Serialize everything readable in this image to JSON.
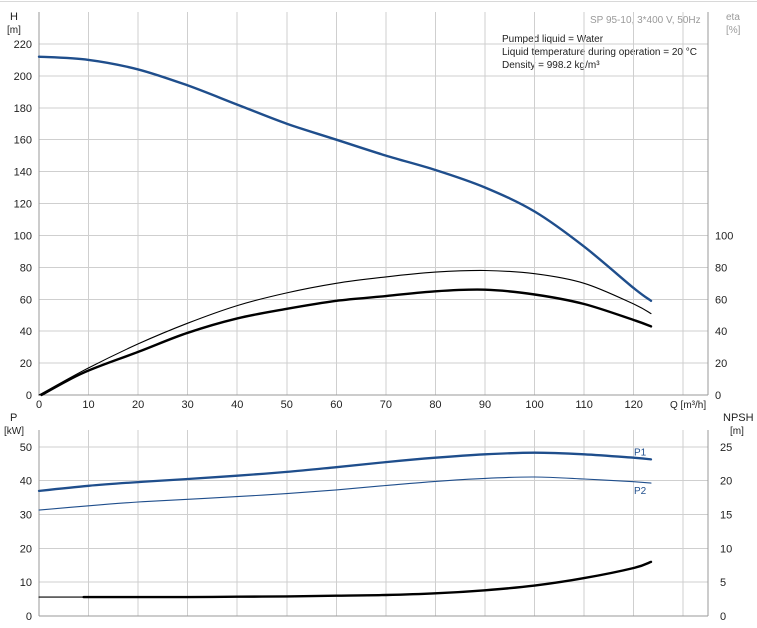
{
  "header": {
    "pump_model": "SP 95-10, 3*400 V, 50Hz",
    "y_left_symbol": "H",
    "y_left_unit": "[m]",
    "y_right_symbol": "eta",
    "y_right_unit": "[%]"
  },
  "info": {
    "line1": "Pumped liquid = Water",
    "line2": "Liquid temperature during operation = 20 °C",
    "line3": "Density = 998.2 kg/m³"
  },
  "colors": {
    "series_blue": "#1f4e8c",
    "series_black": "#000000",
    "grid": "#cfcfcf",
    "axis": "#9a9a9a"
  },
  "chart_data": [
    {
      "type": "line",
      "panel": "top",
      "xlabel": "Q [m³/h]",
      "ylabel": "H [m]",
      "ylabel_right": "eta [%]",
      "xlim": [
        0,
        135
      ],
      "ylim": [
        0,
        240
      ],
      "ylim_right": [
        0,
        240
      ],
      "x_ticks": [
        0,
        10,
        20,
        30,
        40,
        50,
        60,
        70,
        80,
        90,
        100,
        110,
        120
      ],
      "y_ticks": [
        0,
        20,
        40,
        60,
        80,
        100,
        120,
        140,
        160,
        180,
        200,
        220
      ],
      "y_ticks_right": [
        0,
        20,
        40,
        60,
        80,
        100
      ],
      "grid": true,
      "series": [
        {
          "id": "H",
          "color": "#1f4e8c",
          "x": [
            0,
            10,
            20,
            30,
            40,
            50,
            60,
            70,
            80,
            90,
            100,
            110,
            120,
            123.5
          ],
          "y": [
            212,
            210,
            204,
            194,
            182,
            170,
            160,
            150,
            141,
            130,
            115,
            93,
            67,
            59
          ]
        },
        {
          "id": "eta_thin",
          "color": "#000000",
          "x": [
            0,
            10,
            20,
            30,
            40,
            50,
            60,
            70,
            80,
            90,
            100,
            110,
            120,
            123.5
          ],
          "y": [
            0,
            17,
            32,
            45,
            56,
            64,
            70,
            74,
            77,
            78,
            76,
            70,
            57,
            51
          ]
        },
        {
          "id": "eta_thick",
          "color": "#000000",
          "x": [
            0.5,
            9,
            20,
            30,
            40,
            50,
            60,
            70,
            80,
            90,
            100,
            110,
            120,
            123.5
          ],
          "y": [
            0,
            14,
            27,
            39,
            48,
            54,
            59,
            62,
            65,
            66,
            63,
            57,
            47,
            43
          ]
        }
      ]
    },
    {
      "type": "line",
      "panel": "bottom",
      "xlabel": "",
      "ylabel": "P [kW]",
      "ylabel_right": "NPSH [m]",
      "xlim": [
        0,
        135
      ],
      "ylim": [
        0,
        55
      ],
      "ylim_right": [
        0,
        27.5
      ],
      "y_ticks": [
        0,
        10,
        20,
        30,
        40,
        50
      ],
      "y_ticks_right": [
        0,
        5,
        10,
        15,
        20,
        25
      ],
      "grid": true,
      "series": [
        {
          "id": "P1",
          "name": "P1",
          "color": "#1f4e8c",
          "x": [
            0,
            10,
            20,
            30,
            40,
            50,
            60,
            70,
            80,
            90,
            100,
            110,
            120,
            123.5
          ],
          "y": [
            37,
            38.5,
            39.6,
            40.5,
            41.5,
            42.6,
            44,
            45.5,
            46.8,
            47.8,
            48.3,
            47.8,
            46.8,
            46.3
          ]
        },
        {
          "id": "P2",
          "name": "P2",
          "color": "#1f4e8c",
          "x": [
            0,
            10,
            20,
            30,
            40,
            50,
            60,
            70,
            80,
            90,
            100,
            110,
            120,
            123.5
          ],
          "y": [
            31.3,
            32.6,
            33.7,
            34.5,
            35.3,
            36.2,
            37.3,
            38.6,
            39.8,
            40.7,
            41.1,
            40.5,
            39.7,
            39.3
          ]
        },
        {
          "id": "NPSH_start",
          "color": "#000000",
          "axis": "right",
          "x": [
            0,
            9
          ],
          "y": [
            2.8,
            2.8
          ]
        },
        {
          "id": "NPSH",
          "color": "#000000",
          "axis": "right",
          "x": [
            9,
            20,
            30,
            40,
            50,
            60,
            70,
            80,
            90,
            100,
            110,
            120,
            123.5
          ],
          "y": [
            2.8,
            2.8,
            2.8,
            2.85,
            2.9,
            3.0,
            3.1,
            3.35,
            3.8,
            4.5,
            5.6,
            7.1,
            8.0
          ]
        }
      ]
    }
  ]
}
